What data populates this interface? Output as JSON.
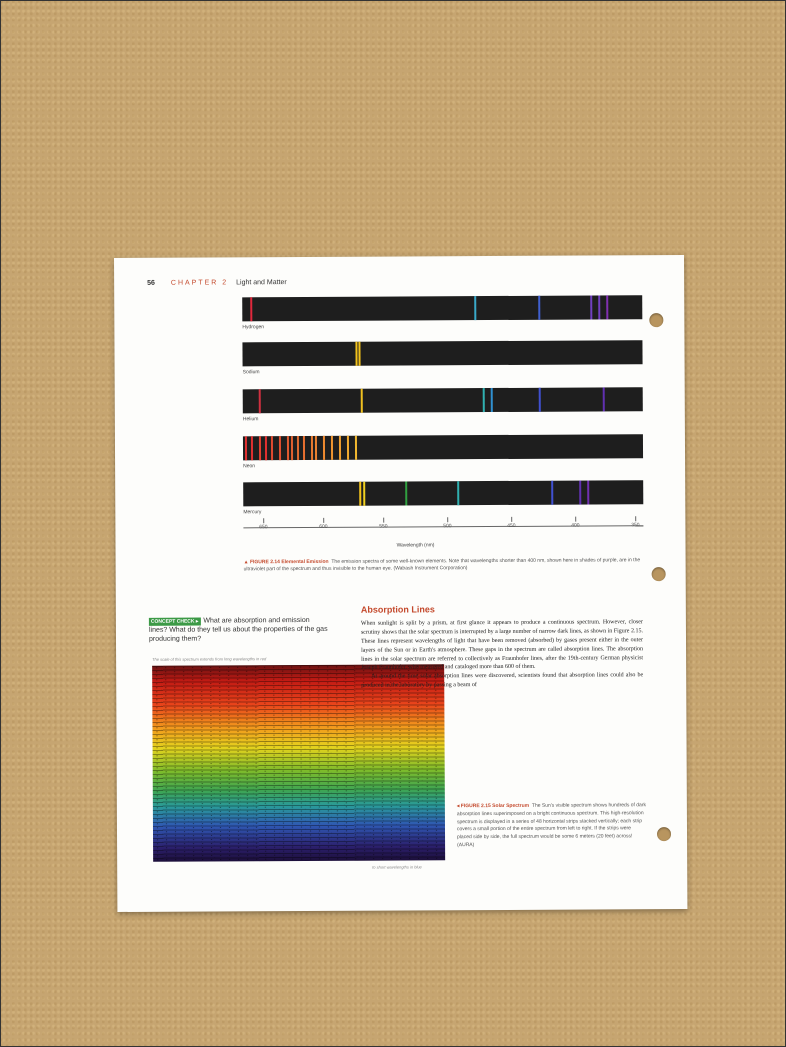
{
  "header": {
    "page_number": "56",
    "chapter": "CHAPTER 2",
    "chapter_title": "Light and Matter"
  },
  "figure214": {
    "spectra": [
      {
        "label": "Hydrogen",
        "lines": [
          {
            "pos": 0.02,
            "color": "#e0283c"
          },
          {
            "pos": 0.58,
            "color": "#3aa9c9"
          },
          {
            "pos": 0.74,
            "color": "#4060d0"
          },
          {
            "pos": 0.87,
            "color": "#7040c0"
          },
          {
            "pos": 0.89,
            "color": "#7040c0"
          },
          {
            "pos": 0.91,
            "color": "#8030b0"
          }
        ]
      },
      {
        "label": "Sodium",
        "lines": [
          {
            "pos": 0.283,
            "color": "#f2c21b"
          },
          {
            "pos": 0.29,
            "color": "#f2c21b"
          }
        ]
      },
      {
        "label": "Helium",
        "lines": [
          {
            "pos": 0.04,
            "color": "#d03040"
          },
          {
            "pos": 0.295,
            "color": "#f0c020"
          },
          {
            "pos": 0.6,
            "color": "#30b0b0"
          },
          {
            "pos": 0.62,
            "color": "#3090d0"
          },
          {
            "pos": 0.74,
            "color": "#4050d0"
          },
          {
            "pos": 0.9,
            "color": "#6030b0"
          }
        ]
      },
      {
        "label": "Neon",
        "lines": [
          {
            "pos": 0.005,
            "color": "#e03030"
          },
          {
            "pos": 0.02,
            "color": "#e03030"
          },
          {
            "pos": 0.04,
            "color": "#e34030"
          },
          {
            "pos": 0.055,
            "color": "#e03030"
          },
          {
            "pos": 0.07,
            "color": "#e04a30"
          },
          {
            "pos": 0.09,
            "color": "#e35030"
          },
          {
            "pos": 0.11,
            "color": "#e05a30"
          },
          {
            "pos": 0.12,
            "color": "#e36030"
          },
          {
            "pos": 0.135,
            "color": "#e06a30"
          },
          {
            "pos": 0.15,
            "color": "#e87030"
          },
          {
            "pos": 0.17,
            "color": "#e87a30"
          },
          {
            "pos": 0.18,
            "color": "#ec8230"
          },
          {
            "pos": 0.2,
            "color": "#ee8a30"
          },
          {
            "pos": 0.22,
            "color": "#f09530"
          },
          {
            "pos": 0.24,
            "color": "#f2a030"
          },
          {
            "pos": 0.26,
            "color": "#f2aa30"
          },
          {
            "pos": 0.28,
            "color": "#f2b830"
          }
        ]
      },
      {
        "label": "Mercury",
        "lines": [
          {
            "pos": 0.29,
            "color": "#f2c21b"
          },
          {
            "pos": 0.3,
            "color": "#f0d020"
          },
          {
            "pos": 0.405,
            "color": "#30a040"
          },
          {
            "pos": 0.535,
            "color": "#30b0b0"
          },
          {
            "pos": 0.77,
            "color": "#4050d0"
          },
          {
            "pos": 0.84,
            "color": "#6030b0"
          },
          {
            "pos": 0.86,
            "color": "#7030b0"
          }
        ]
      }
    ],
    "axis": {
      "ticks": [
        {
          "label": "650",
          "pos": 0.05
        },
        {
          "label": "600",
          "pos": 0.2
        },
        {
          "label": "550",
          "pos": 0.35
        },
        {
          "label": "500",
          "pos": 0.51
        },
        {
          "label": "450",
          "pos": 0.67
        },
        {
          "label": "400",
          "pos": 0.83
        },
        {
          "label": "350",
          "pos": 0.98
        }
      ],
      "label": "Wavelength (nm)"
    },
    "caption_head": "▲ FIGURE 2.14  Elemental Emission",
    "caption_body": "The emission spectra of some well-known elements. Note that wavelengths shorter than 400 nm, shown here in shades of purple, are in the ultraviolet part of the spectrum and thus invisible to the human eye. (Wabash Instrument Corporation)"
  },
  "concept_check": {
    "badge": "CONCEPT CHECK ▸",
    "question": "What are absorption and emission lines? What do they tell us about the properties of the gas producing them?"
  },
  "figure215": {
    "top_note": "The scale of this spectrum extends from long wavelengths in red",
    "bottom_note": "to short wavelengths in blue",
    "caption_head": "◂ FIGURE 2.15  Solar Spectrum",
    "caption_body": "The Sun's visible spectrum shows hundreds of dark absorption lines superimposed on a bright continuous spectrum. This high-resolution spectrum is displayed in a series of 48 horizontal strips stacked vertically; each strip covers a small portion of the entire spectrum from left to right. If the strips were placed side by side, the full spectrum would be some 6 meters (20 feet) across! (AURA)"
  },
  "section": {
    "title": "Absorption Lines",
    "paragraph1": "When sunlight is split by a prism, at first glance it appears to produce a continuous spectrum. However, closer scrutiny shows that the solar spectrum is interrupted by a large number of narrow dark lines, as shown in Figure 2.15. These lines represent wavelengths of light that have been removed (absorbed) by gases present either in the outer layers of the Sun or in Earth's atmosphere. These gaps in the spectrum are called absorption lines. The absorption lines in the solar spectrum are referred to collectively as Fraunhofer lines, after the 19th-century German physicist Joseph Fraunhofer, who measured and cataloged more than 600 of them.",
    "paragraph2": "At around the time solar absorption lines were discovered, scientists found that absorption lines could also be produced in the laboratory by passing a beam of"
  }
}
